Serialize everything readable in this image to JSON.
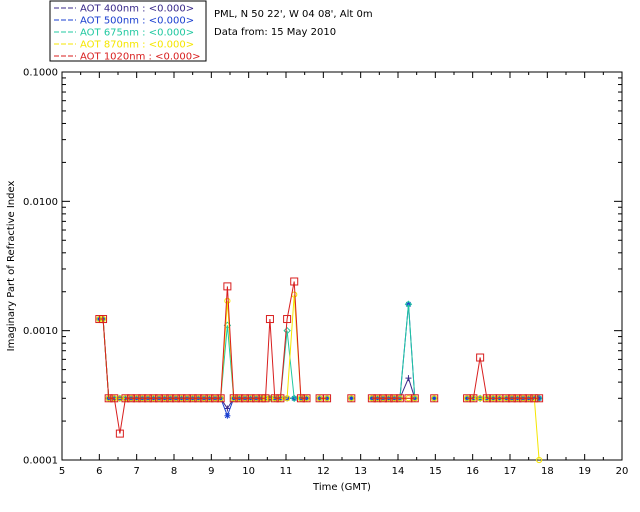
{
  "header": {
    "site": "PML, N 50 22', W 04 08', Alt 0m",
    "date": "Data from: 15 May 2010"
  },
  "legend": [
    {
      "label": "AOT  400nm : <0.000>",
      "color": "#3a2a8a"
    },
    {
      "label": "AOT  500nm : <0.000>",
      "color": "#1a3fd0"
    },
    {
      "label": "AOT  675nm : <0.000>",
      "color": "#20c8a0"
    },
    {
      "label": "AOT  870nm : <0.000>",
      "color": "#f5e600"
    },
    {
      "label": "AOT 1020nm : <0.000>",
      "color": "#d81e1e"
    }
  ],
  "chart_data": {
    "type": "line",
    "xlabel": "Time (GMT)",
    "ylabel": "Imaginary Part of Refractive Index",
    "xlim": [
      5,
      20
    ],
    "ylim": [
      0.0001,
      0.1
    ],
    "yscale": "log",
    "xticks": [
      "5",
      "6",
      "7",
      "8",
      "9",
      "10",
      "11",
      "12",
      "13",
      "14",
      "15",
      "16",
      "17",
      "18",
      "19",
      "20"
    ],
    "yticks": [
      {
        "value": 0.0001,
        "label": "0.0001"
      },
      {
        "value": 0.001,
        "label": "0.0010"
      },
      {
        "value": 0.01,
        "label": "0.0100"
      },
      {
        "value": 0.1,
        "label": "0.1000"
      }
    ],
    "segments": [
      {
        "x": [
          6.0,
          6.1,
          6.25,
          6.4,
          6.55,
          6.7,
          6.85,
          7.0,
          7.15,
          7.3,
          7.45,
          7.6,
          7.75,
          7.9,
          8.05,
          8.2,
          8.35,
          8.5,
          8.65,
          8.8,
          8.95,
          9.1,
          9.25,
          9.43,
          9.6,
          9.75,
          9.9,
          10.05,
          10.2,
          10.35,
          10.45,
          10.57,
          10.7,
          10.85,
          11.03,
          11.22,
          11.4,
          11.55
        ],
        "base": [
          0.00123,
          0.00123,
          0.0003,
          0.0003,
          0.0003,
          0.0003,
          0.0003,
          0.0003,
          0.0003,
          0.0003,
          0.0003,
          0.0003,
          0.0003,
          0.0003,
          0.0003,
          0.0003,
          0.0003,
          0.0003,
          0.0003,
          0.0003,
          0.0003,
          0.0003,
          0.0003,
          0.0003,
          0.0003,
          0.0003,
          0.0003,
          0.0003,
          0.0003,
          0.0003,
          0.0003,
          0.0003,
          0.0003,
          0.0003,
          0.0003,
          0.0003,
          0.0003,
          0.0003
        ]
      },
      {
        "x": [
          11.9,
          12.1
        ],
        "base": [
          0.0003,
          0.0003
        ]
      },
      {
        "x": [
          12.75
        ],
        "base": [
          0.0003
        ]
      },
      {
        "x": [
          13.3,
          13.45,
          13.6,
          13.75,
          13.9,
          14.05,
          14.28,
          14.45
        ],
        "base": [
          0.0003,
          0.0003,
          0.0003,
          0.0003,
          0.0003,
          0.0003,
          0.0003,
          0.0003
        ]
      },
      {
        "x": [
          14.97
        ],
        "base": [
          0.0003
        ]
      },
      {
        "x": [
          15.85,
          16.02,
          16.2,
          16.38,
          16.55,
          16.72,
          16.9,
          17.05,
          17.2,
          17.35,
          17.5,
          17.65,
          17.78
        ],
        "base": [
          0.0003,
          0.0003,
          0.0003,
          0.0003,
          0.0003,
          0.0003,
          0.0003,
          0.0003,
          0.0003,
          0.0003,
          0.0003,
          0.0003,
          0.0003
        ]
      }
    ],
    "series": [
      {
        "name": "AOT  400nm",
        "overrides": {
          "9.43": 0.00025,
          "14.28": 0.00043
        }
      },
      {
        "name": "AOT  500nm",
        "overrides": {
          "9.43": 0.00022,
          "11.22": 0.0003,
          "14.28": 0.0016
        }
      },
      {
        "name": "AOT  675nm",
        "overrides": {
          "9.43": 0.0011,
          "11.03": 0.001,
          "14.28": 0.0016
        }
      },
      {
        "name": "AOT  870nm",
        "overrides": {
          "9.43": 0.0017,
          "11.22": 0.0019,
          "17.78": 0.0001
        }
      },
      {
        "name": "AOT 1020nm",
        "overrides": {
          "6.55": 0.00016,
          "9.43": 0.0022,
          "10.57": 0.00123,
          "11.03": 0.00123,
          "11.22": 0.0024,
          "16.2": 0.00062
        }
      }
    ]
  }
}
